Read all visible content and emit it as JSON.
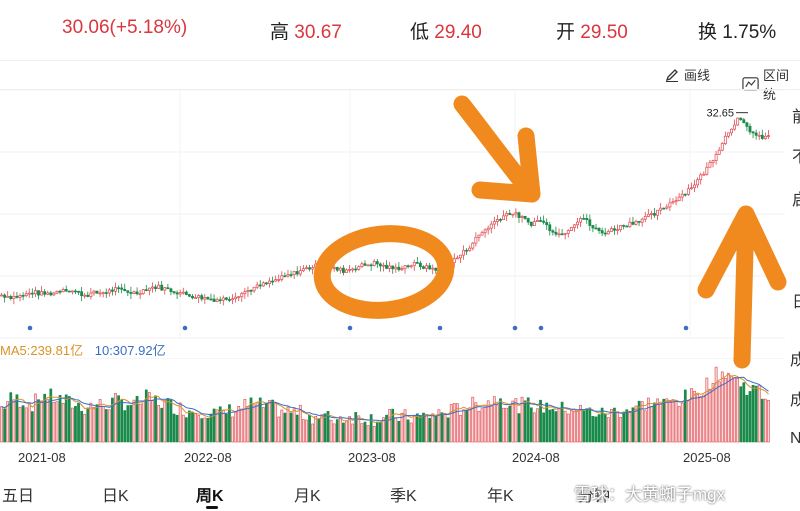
{
  "quote": {
    "price": "30.06(+5.18%)",
    "high_label": "高",
    "high_value": "30.67",
    "low_label": "低",
    "low_value": "29.40",
    "open_label": "开",
    "open_value": "29.50",
    "turnover_label": "换",
    "turnover_value": "1.75%"
  },
  "tools": {
    "draw_label": "画线",
    "range_label": "区间统"
  },
  "chart": {
    "max_label": "32.65",
    "side_labels": [
      "前",
      "不",
      "启",
      "日",
      "成",
      "成",
      "N"
    ]
  },
  "indicators": {
    "ma5": "MA5:239.81亿",
    "ma10": "10:307.92亿"
  },
  "dates": [
    "2021-08",
    "2022-08",
    "2023-08",
    "2024-08",
    "2025-08"
  ],
  "tabs": [
    "五日",
    "日K",
    "周K",
    "月K",
    "季K",
    "年K",
    "分钟"
  ],
  "active_tab": "周K",
  "watermark": "雪球：大黄蜘子mgx",
  "colors": {
    "up": "#e0484f",
    "down": "#1a8a4a",
    "accent_orange": "#f08a1e",
    "ma5": "#d8932a",
    "ma10": "#3a6fc4"
  },
  "chart_data": {
    "type": "candlestick",
    "period": "weekly",
    "price_path": [
      13.2,
      13.0,
      13.1,
      13.5,
      13.3,
      13.4,
      13.9,
      13.6,
      13.2,
      13.4,
      13.5,
      13.8,
      13.6,
      13.4,
      13.9,
      14.1,
      13.8,
      13.5,
      13.2,
      13.0,
      12.8,
      12.7,
      12.9,
      13.3,
      13.8,
      14.2,
      14.6,
      15.0,
      15.4,
      15.9,
      16.2,
      16.4,
      16.0,
      15.8,
      16.1,
      16.4,
      16.6,
      16.2,
      16.0,
      16.3,
      16.5,
      16.1,
      16.0,
      16.4,
      17.2,
      18.2,
      19.5,
      20.5,
      21.4,
      22.0,
      21.6,
      20.8,
      21.2,
      20.2,
      19.6,
      20.6,
      21.6,
      20.4,
      19.8,
      20.2,
      20.6,
      21.0,
      21.4,
      21.8,
      22.6,
      23.4,
      24.2,
      25.2,
      26.6,
      28.4,
      30.4,
      32.0,
      31.0,
      30.0,
      30.06
    ],
    "max_marked": 32.65,
    "volume_path": [
      0.45,
      0.6,
      0.55,
      0.5,
      0.65,
      0.6,
      0.55,
      0.5,
      0.45,
      0.5,
      0.48,
      0.55,
      0.52,
      0.5,
      0.6,
      0.55,
      0.5,
      0.45,
      0.4,
      0.42,
      0.38,
      0.35,
      0.4,
      0.45,
      0.5,
      0.48,
      0.45,
      0.4,
      0.38,
      0.36,
      0.32,
      0.3,
      0.28,
      0.3,
      0.32,
      0.3,
      0.28,
      0.3,
      0.32,
      0.3,
      0.3,
      0.32,
      0.35,
      0.38,
      0.42,
      0.48,
      0.5,
      0.55,
      0.6,
      0.52,
      0.48,
      0.5,
      0.45,
      0.48,
      0.42,
      0.45,
      0.4,
      0.38,
      0.35,
      0.38,
      0.42,
      0.45,
      0.5,
      0.55,
      0.5,
      0.55,
      0.6,
      0.65,
      0.8,
      0.95,
      1.0,
      0.85,
      0.75,
      0.7,
      0.6
    ]
  }
}
